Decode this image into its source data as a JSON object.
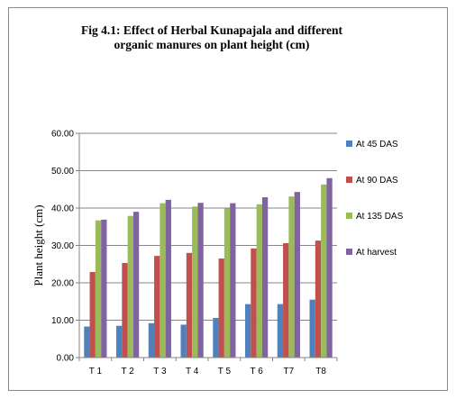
{
  "chart_data": {
    "type": "bar",
    "title_line1": "Fig 4.1: Effect of Herbal Kunapajala and different",
    "title_line2": "organic manures on plant height (cm)",
    "xlabel": "",
    "ylabel": "Plant height (cm)",
    "ylim": [
      0,
      60
    ],
    "yticks": [
      "0.00",
      "10.00",
      "20.00",
      "30.00",
      "40.00",
      "50.00",
      "60.00"
    ],
    "categories": [
      "T 1",
      "T 2",
      "T 3",
      "T 4",
      "T 5",
      "T 6",
      "T7",
      "T8"
    ],
    "grid": true,
    "legend_position": "right",
    "series": [
      {
        "name": "At 45 DAS",
        "color": "#4f81bd",
        "values": [
          8.3,
          8.5,
          9.2,
          8.8,
          10.6,
          14.3,
          14.3,
          15.5
        ]
      },
      {
        "name": "At 90 DAS",
        "color": "#c0504d",
        "values": [
          22.9,
          25.3,
          27.2,
          28.0,
          26.5,
          29.2,
          30.6,
          31.3
        ]
      },
      {
        "name": "At 135 DAS",
        "color": "#9bbb59",
        "values": [
          36.7,
          37.9,
          41.3,
          40.4,
          39.9,
          41.0,
          43.1,
          46.3
        ]
      },
      {
        "name": "At harvest",
        "color": "#8064a2",
        "values": [
          36.9,
          39.0,
          42.2,
          41.4,
          41.3,
          42.9,
          44.3,
          48.0
        ]
      }
    ]
  }
}
